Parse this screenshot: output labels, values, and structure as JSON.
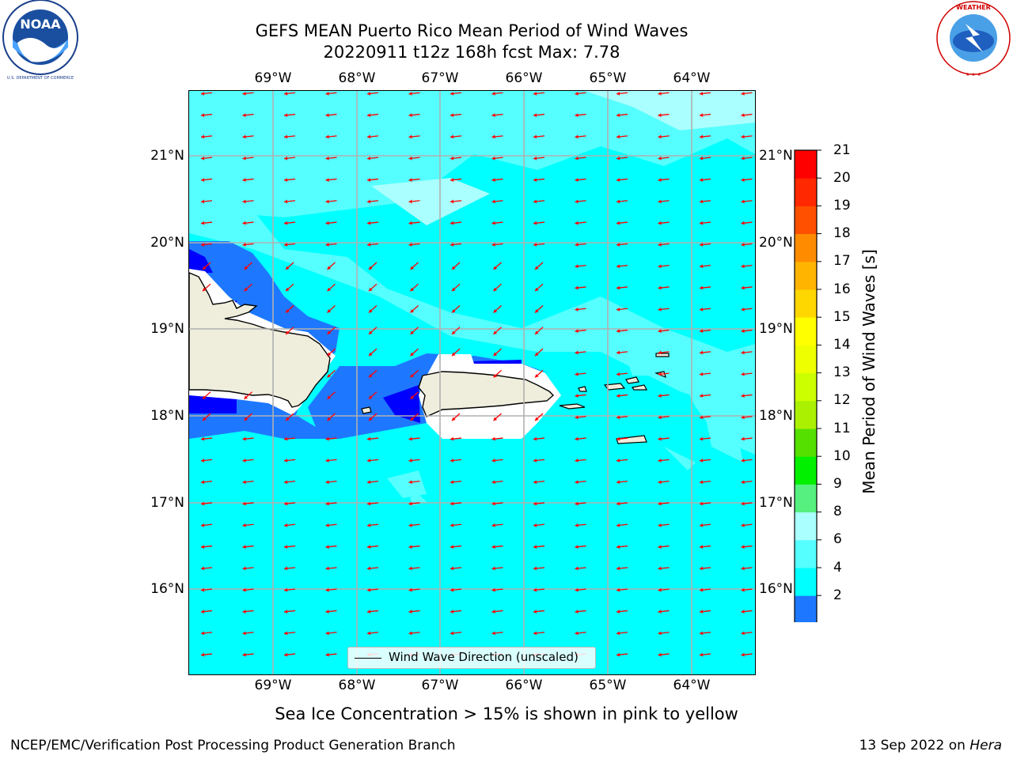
{
  "header": {
    "title_line1": "GEFS MEAN Puerto Rico Mean Period of Wind Waves",
    "title_line2": "20220911 t12z 168h fcst   Max: 7.78"
  },
  "map": {
    "lon_labels": [
      "69°W",
      "68°W",
      "67°W",
      "66°W",
      "65°W",
      "64°W"
    ],
    "lat_labels": [
      "21°N",
      "20°N",
      "19°N",
      "18°N",
      "17°N",
      "16°N"
    ],
    "land_color": "#efeedd",
    "ocean_color": "#00ffff",
    "arrow_color": "#ff0000",
    "wind_direction": "toward the west-southwest (from the east-northeast)"
  },
  "legend": {
    "label": "Wind Wave Direction (unscaled)"
  },
  "colorbar": {
    "title": "Mean Period of Wind Waves [s]",
    "ticks": [
      "2",
      "4",
      "6",
      "8",
      "9",
      "10",
      "11",
      "12",
      "13",
      "14",
      "15",
      "16",
      "17",
      "18",
      "19",
      "20",
      "21"
    ],
    "colors": [
      "#0000ff",
      "#1e78ff",
      "#00ffff",
      "#55ffff",
      "#aaffff",
      "#55f07f",
      "#00f000",
      "#55e000",
      "#aaf000",
      "#ccff00",
      "#eeff00",
      "#ffff00",
      "#ffd700",
      "#ffb400",
      "#ff8c00",
      "#ff5000",
      "#ff2800",
      "#ff0000"
    ],
    "extend": "min"
  },
  "notes": {
    "sea_ice": "Sea Ice Concentration > 15% is shown in pink to yellow"
  },
  "footer": {
    "left": "NCEP/EMC/Verification Post Processing Product Generation Branch",
    "right_prefix": "13 Sep 2022 on ",
    "right_machine": "Hera"
  },
  "logos": {
    "noaa_text": "NOAA",
    "nws_text": "NATIONAL WEATHER SERVICE"
  }
}
